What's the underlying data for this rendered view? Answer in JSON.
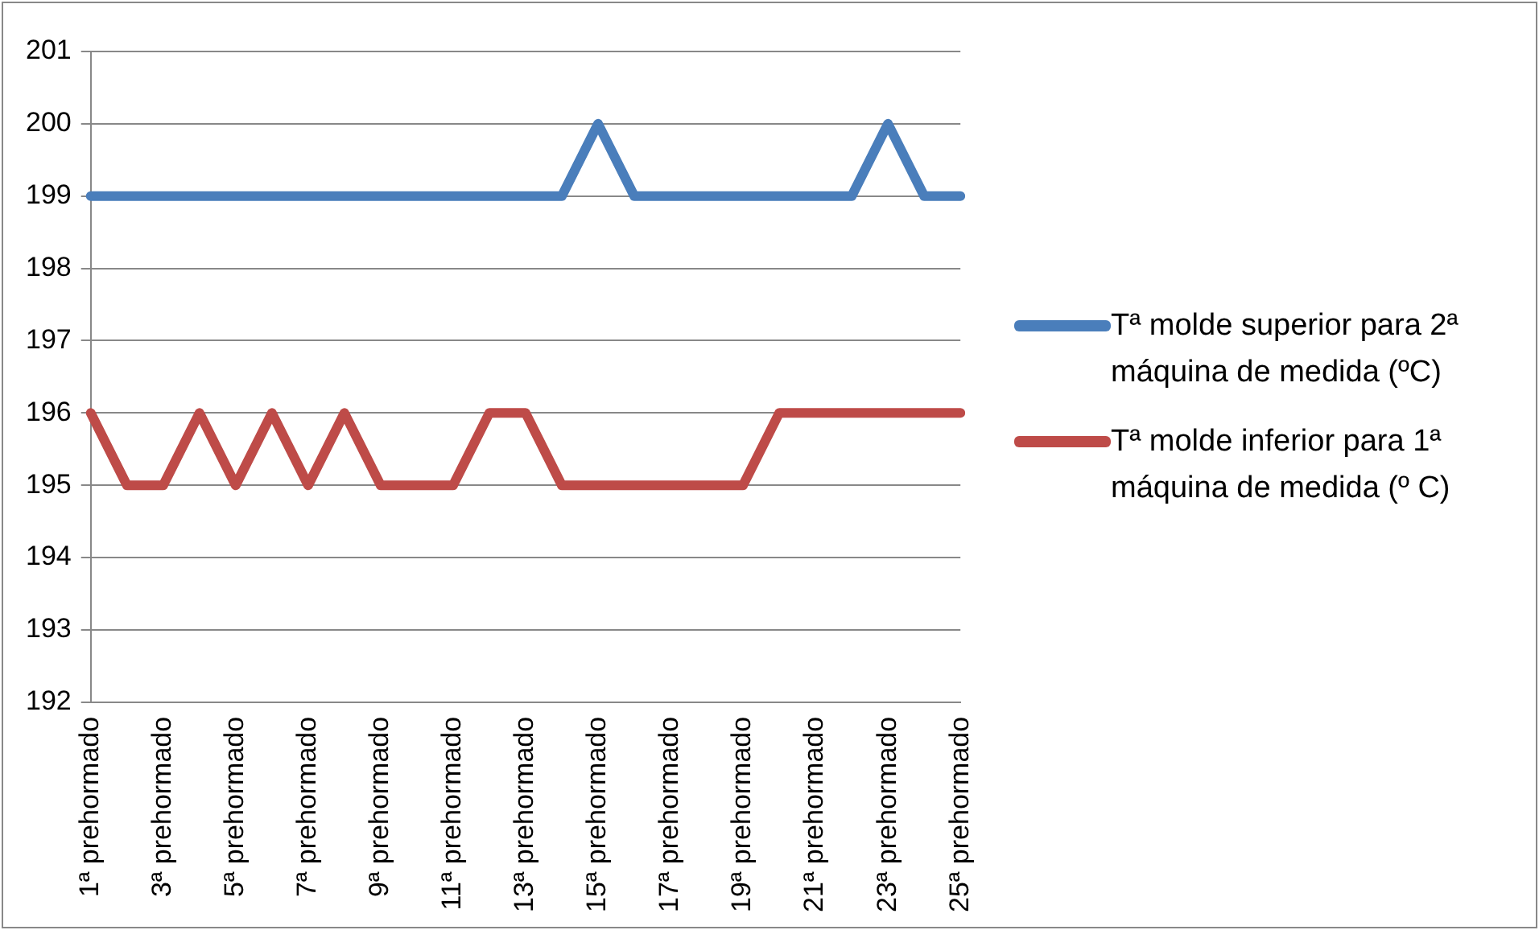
{
  "chart_data": {
    "type": "line",
    "categories": [
      "1ª prehormado",
      null,
      "3ª prehormado",
      null,
      "5ª prehormado",
      null,
      "7ª prehormado",
      null,
      "9ª prehormado",
      null,
      "11ª prehormado",
      null,
      "13ª prehormado",
      null,
      "15ª prehormado",
      null,
      "17ª prehormado",
      null,
      "19ª prehormado",
      null,
      "21ª prehormado",
      null,
      "23ª prehormado",
      null,
      "25ª prehormado"
    ],
    "series": [
      {
        "name": "Tª molde superior para 2ª máquina de medida (ºC)",
        "color": "#4a7ebb",
        "values": [
          199,
          199,
          199,
          199,
          199,
          199,
          199,
          199,
          199,
          199,
          199,
          199,
          199,
          199,
          200,
          199,
          199,
          199,
          199,
          199,
          199,
          199,
          200,
          199,
          199
        ]
      },
      {
        "name": "Tª molde inferior para 1ª máquina de medida (º C)",
        "color": "#be4b48",
        "values": [
          196,
          195,
          195,
          196,
          195,
          196,
          195,
          196,
          195,
          195,
          195,
          196,
          196,
          195,
          195,
          195,
          195,
          195,
          195,
          196,
          196,
          196,
          196,
          196,
          196
        ]
      }
    ],
    "ylim": [
      192,
      201
    ],
    "yticks": [
      192,
      193,
      194,
      195,
      196,
      197,
      198,
      199,
      200,
      201
    ],
    "grid": "y",
    "legend": "right",
    "marker": "none",
    "line_style": "solid"
  }
}
